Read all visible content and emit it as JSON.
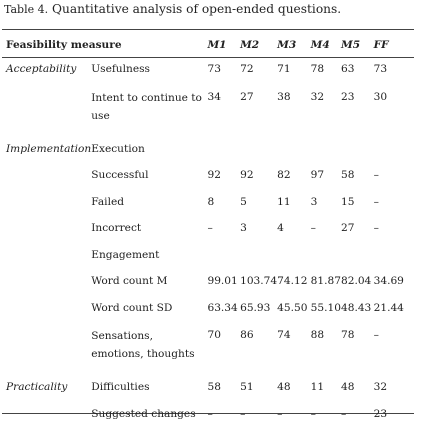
{
  "caption": {
    "label": "Table 4.",
    "text": "Quantitative analysis of open-ended questions."
  },
  "headers": [
    "Feasibility measure",
    "",
    "M1",
    "M2",
    "M3",
    "M4",
    "M5",
    "FF"
  ],
  "rows": [
    {
      "category": "Acceptability",
      "item": "Usefulness",
      "values": [
        "73",
        "72",
        "71",
        "78",
        "63",
        "73"
      ]
    },
    {
      "category": "",
      "item": "Intent to continue to use",
      "values": [
        "34",
        "27",
        "38",
        "32",
        "23",
        "30"
      ]
    },
    {
      "category": "Implementation",
      "item": "Execution",
      "values": [
        "",
        "",
        "",
        "",
        "",
        ""
      ]
    },
    {
      "category": "",
      "item": "Successful",
      "values": [
        "92",
        "92",
        "82",
        "97",
        "58",
        "–"
      ]
    },
    {
      "category": "",
      "item": "Failed",
      "values": [
        "8",
        "5",
        "11",
        "3",
        "15",
        "–"
      ]
    },
    {
      "category": "",
      "item": "Incorrect",
      "values": [
        "–",
        "3",
        "4",
        "–",
        "27",
        "–"
      ]
    },
    {
      "category": "",
      "item": "Engagement",
      "values": [
        "",
        "",
        "",
        "",
        "",
        ""
      ]
    },
    {
      "category": "",
      "item": "Word count M",
      "values": [
        "99.01",
        "103.74",
        "74.12",
        "81.87",
        "82.04",
        "34.69"
      ]
    },
    {
      "category": "",
      "item": "Word count SD",
      "values": [
        "63.34",
        "65.93",
        "45.50",
        "55.10",
        "48.43",
        "21.44"
      ]
    },
    {
      "category": "",
      "item": "Sensations, emotions, thoughts",
      "values": [
        "70",
        "86",
        "74",
        "88",
        "78",
        "–"
      ]
    },
    {
      "category": "Practicality",
      "item": "Difficulties",
      "values": [
        "58",
        "51",
        "48",
        "11",
        "48",
        "32"
      ]
    },
    {
      "category": "",
      "item": "Suggested changes",
      "values": [
        "–",
        "–",
        "–",
        "–",
        "–",
        "23"
      ]
    }
  ]
}
